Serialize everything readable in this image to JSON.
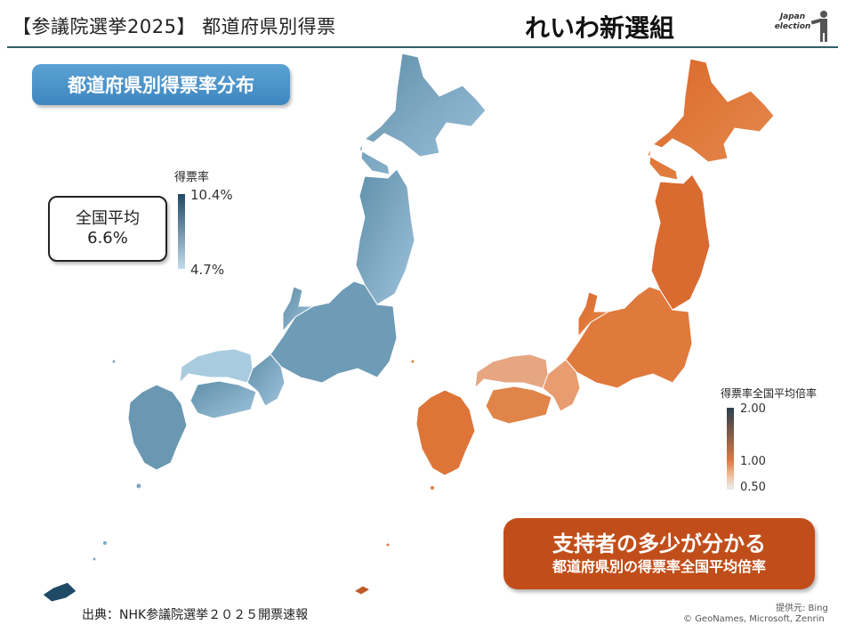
{
  "header": {
    "title": "【参議院選挙2025】 都道府県別得票",
    "party": "れいわ新選組",
    "logo_text": "Japan election"
  },
  "left_panel": {
    "pill": "都道府県別得票率分布",
    "average_label": "全国平均",
    "average_value": "6.6%",
    "legend": {
      "title": "得票率",
      "max": "10.4%",
      "min": "4.7%"
    }
  },
  "right_panel": {
    "legend": {
      "title": "得票率全国平均倍率",
      "ticks": [
        "2.00",
        "1.00",
        "0.50"
      ]
    },
    "callout_line1": "支持者の多少が分かる",
    "callout_line2": "都道府県別の得票率全国平均倍率"
  },
  "footer": {
    "source": "出典：NHK参議院選挙２０２５開票速報",
    "provider": "提供元: Bing",
    "copyright": "© GeoNames, Microsoft, Zenrin"
  },
  "colors": {
    "rule": "#2f5f6a",
    "pill_blue": "#4a92c8",
    "map_blue_dark": "#1f4a66",
    "map_blue_light": "#c3dbeb",
    "map_orange": "#e07a3c",
    "callout_orange": "#c14e1a"
  }
}
